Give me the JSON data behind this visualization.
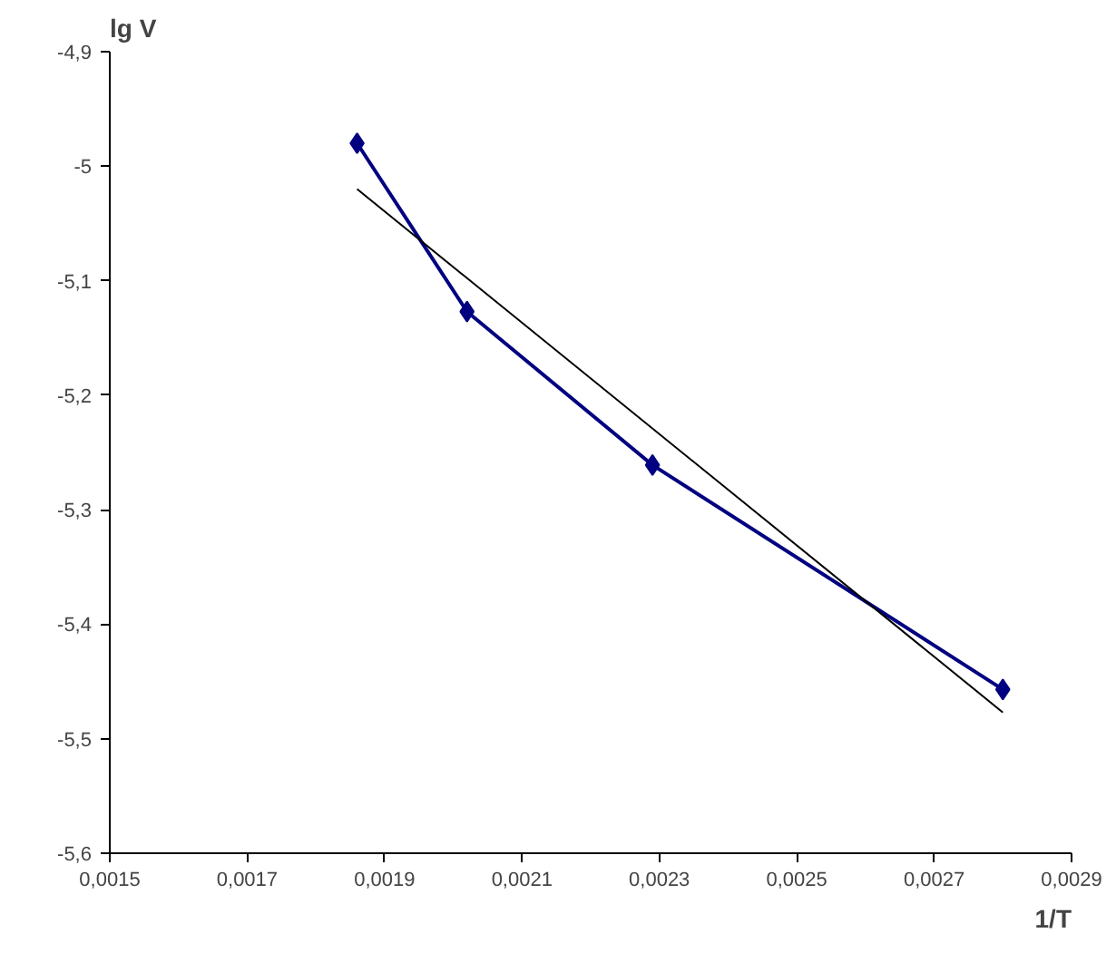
{
  "chart_data": {
    "type": "line",
    "xlabel": "1/T",
    "ylabel": "lg V",
    "series": [
      {
        "color": "#000080",
        "x": [
          0.00186,
          0.00202,
          0.00229,
          0.0028
        ],
        "values": [
          -4.98,
          -5.127,
          -5.261,
          -5.457
        ],
        "marker": "diamond"
      },
      {
        "color": "#000000",
        "x": [
          0.00186,
          0.0028
        ],
        "values": [
          -5.02,
          -5.477
        ],
        "marker": "none"
      }
    ],
    "xlim": [
      0.0015,
      0.0029
    ],
    "xticks": [
      {
        "value": 0.0015,
        "label": "0,0015"
      },
      {
        "value": 0.0017,
        "label": "0,0017"
      },
      {
        "value": 0.0019,
        "label": "0,0019"
      },
      {
        "value": 0.0021,
        "label": "0,0021"
      },
      {
        "value": 0.0023,
        "label": "0,0023"
      },
      {
        "value": 0.0025,
        "label": "0,0025"
      },
      {
        "value": 0.0027,
        "label": "0,0027"
      },
      {
        "value": 0.0029,
        "label": "0,0029"
      }
    ],
    "ylim": [
      -5.6,
      -4.9
    ],
    "yticks": [
      {
        "value": -5.6,
        "label": "-5,6"
      },
      {
        "value": -5.5,
        "label": "-5,5"
      },
      {
        "value": -5.4,
        "label": "-5,4"
      },
      {
        "value": -5.3,
        "label": "-5,3"
      },
      {
        "value": -5.2,
        "label": "-5,2"
      },
      {
        "value": -5.1,
        "label": "-5,1"
      },
      {
        "value": -5.0,
        "label": "-5"
      },
      {
        "value": -4.9,
        "label": "-4,9"
      }
    ],
    "grid": false
  }
}
